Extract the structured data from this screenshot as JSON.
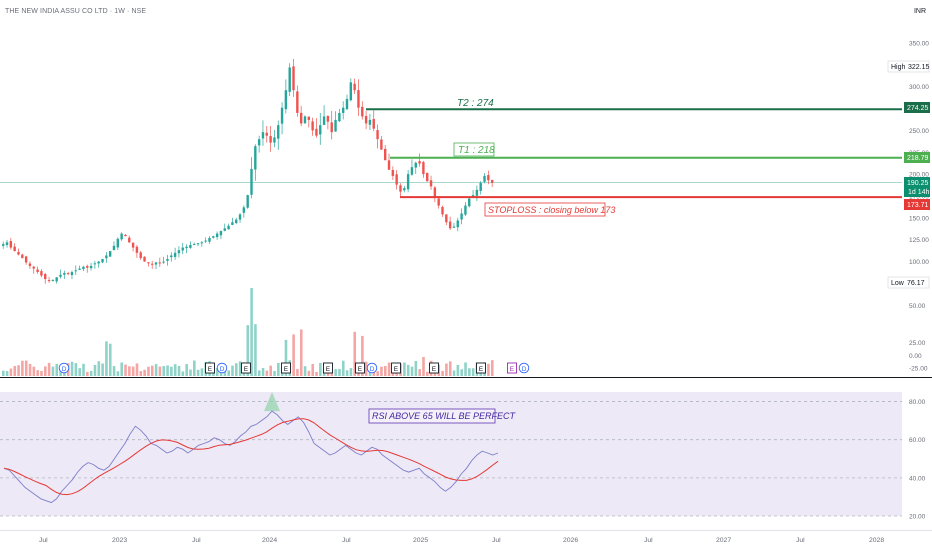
{
  "header": {
    "title": "THE NEW INDIA ASSU CO LTD · 1W · NSE",
    "currency": "INR"
  },
  "colors": {
    "up": "#26a69a",
    "down": "#ef5350",
    "t2": "#1b6e4a",
    "t1": "#4caf50",
    "stop": "#e53935",
    "rsi": "#7e7fc9",
    "rsi_ma": "#e53935",
    "rsi_band": "#ede9f7",
    "vol_up": "#8fd3c8",
    "vol_down": "#f4a6a4",
    "last": "#0b8f6e"
  },
  "price_scale": {
    "ticks": [
      "350.00",
      "325.00",
      "300.00",
      "275.00",
      "250.00",
      "225.00",
      "200.00",
      "175.00",
      "150.00",
      "125.00",
      "100.00",
      "75.00",
      "50.00",
      "25.00",
      "0.00",
      "-25.00"
    ],
    "high_label": "High",
    "high_value": "322.15",
    "low_label": "Low",
    "low_value": "76.17",
    "t2_value": "274.25",
    "t1_value": "218.79",
    "last_value": "190.25",
    "last_countdown": "1d 14h",
    "stop_value": "173.71"
  },
  "rsi_scale": {
    "ticks": [
      "80.00",
      "60.00",
      "40.00",
      "20.00"
    ]
  },
  "time_axis": {
    "labels": [
      "Jul",
      "2023",
      "Jul",
      "2024",
      "Jul",
      "2025",
      "Jul",
      "2026",
      "Jul",
      "2027",
      "Jul",
      "2028"
    ]
  },
  "annotations": {
    "t2": "T2 : 274",
    "t1": "T1 : 218",
    "stop": "STOPLOSS : closing below 173",
    "rsi": "RSI ABOVE 65 WILL BE PERFECT"
  },
  "events": {
    "dividend_symbol": "D",
    "earnings_symbol": "E"
  },
  "chart_data": {
    "type": "candlestick",
    "interval": "1W",
    "ylim": [
      -25,
      350
    ],
    "x_range": [
      "2022-05",
      "2028-02"
    ],
    "start": "2022-05-02",
    "approx_weekly_closes": [
      120,
      122,
      116,
      112,
      108,
      104,
      99,
      95,
      92,
      88,
      84,
      80,
      78,
      79,
      82,
      85,
      87,
      86,
      88,
      90,
      92,
      94,
      93,
      95,
      98,
      100,
      103,
      107,
      112,
      118,
      126,
      132,
      129,
      122,
      116,
      110,
      104,
      100,
      98,
      97,
      99,
      98,
      100,
      103,
      107,
      110,
      113,
      116,
      117,
      119,
      120,
      121,
      122,
      124,
      127,
      129,
      132,
      135,
      138,
      141,
      145,
      148,
      154,
      162,
      176,
      206,
      232,
      240,
      248,
      244,
      236,
      242,
      256,
      276,
      296,
      322,
      296,
      270,
      258,
      266,
      262,
      250,
      244,
      256,
      266,
      260,
      248,
      262,
      270,
      276,
      286,
      305,
      296,
      276,
      266,
      258,
      262,
      252,
      240,
      228,
      216,
      205,
      198,
      188,
      180,
      184,
      200,
      208,
      213,
      212,
      200,
      192,
      186,
      174,
      164,
      154,
      145,
      138,
      140,
      147,
      155,
      164,
      172,
      176,
      182,
      190,
      198,
      193,
      190
    ],
    "markers": {
      "high": 322.15,
      "low": 76.17,
      "t2": 274.25,
      "t1": 218.79,
      "last": 190.25,
      "stoploss": 173.71
    },
    "volume_note": "relative weekly volume bars, up = teal, down = red",
    "rsi": {
      "period": 14,
      "ylim": [
        20,
        85
      ],
      "levels": [
        80,
        60,
        40,
        20
      ],
      "approx_values": [
        45,
        44,
        41,
        38,
        35,
        33,
        31,
        29,
        28,
        27,
        29,
        33,
        36,
        39,
        43,
        46,
        48,
        47,
        45,
        44,
        46,
        50,
        54,
        58,
        63,
        67,
        65,
        62,
        58,
        57,
        55,
        53,
        54,
        56,
        55,
        53,
        55,
        57,
        58,
        59,
        61,
        60,
        58,
        57,
        59,
        62,
        64,
        67,
        68,
        70,
        72,
        75,
        73,
        70,
        68,
        70,
        72,
        69,
        64,
        58,
        56,
        54,
        52,
        53,
        55,
        57,
        55,
        53,
        52,
        54,
        56,
        55,
        52,
        50,
        48,
        46,
        44,
        43,
        44,
        45,
        42,
        40,
        38,
        35,
        33,
        35,
        38,
        42,
        45,
        49,
        52,
        54,
        53,
        52,
        53
      ]
    }
  }
}
